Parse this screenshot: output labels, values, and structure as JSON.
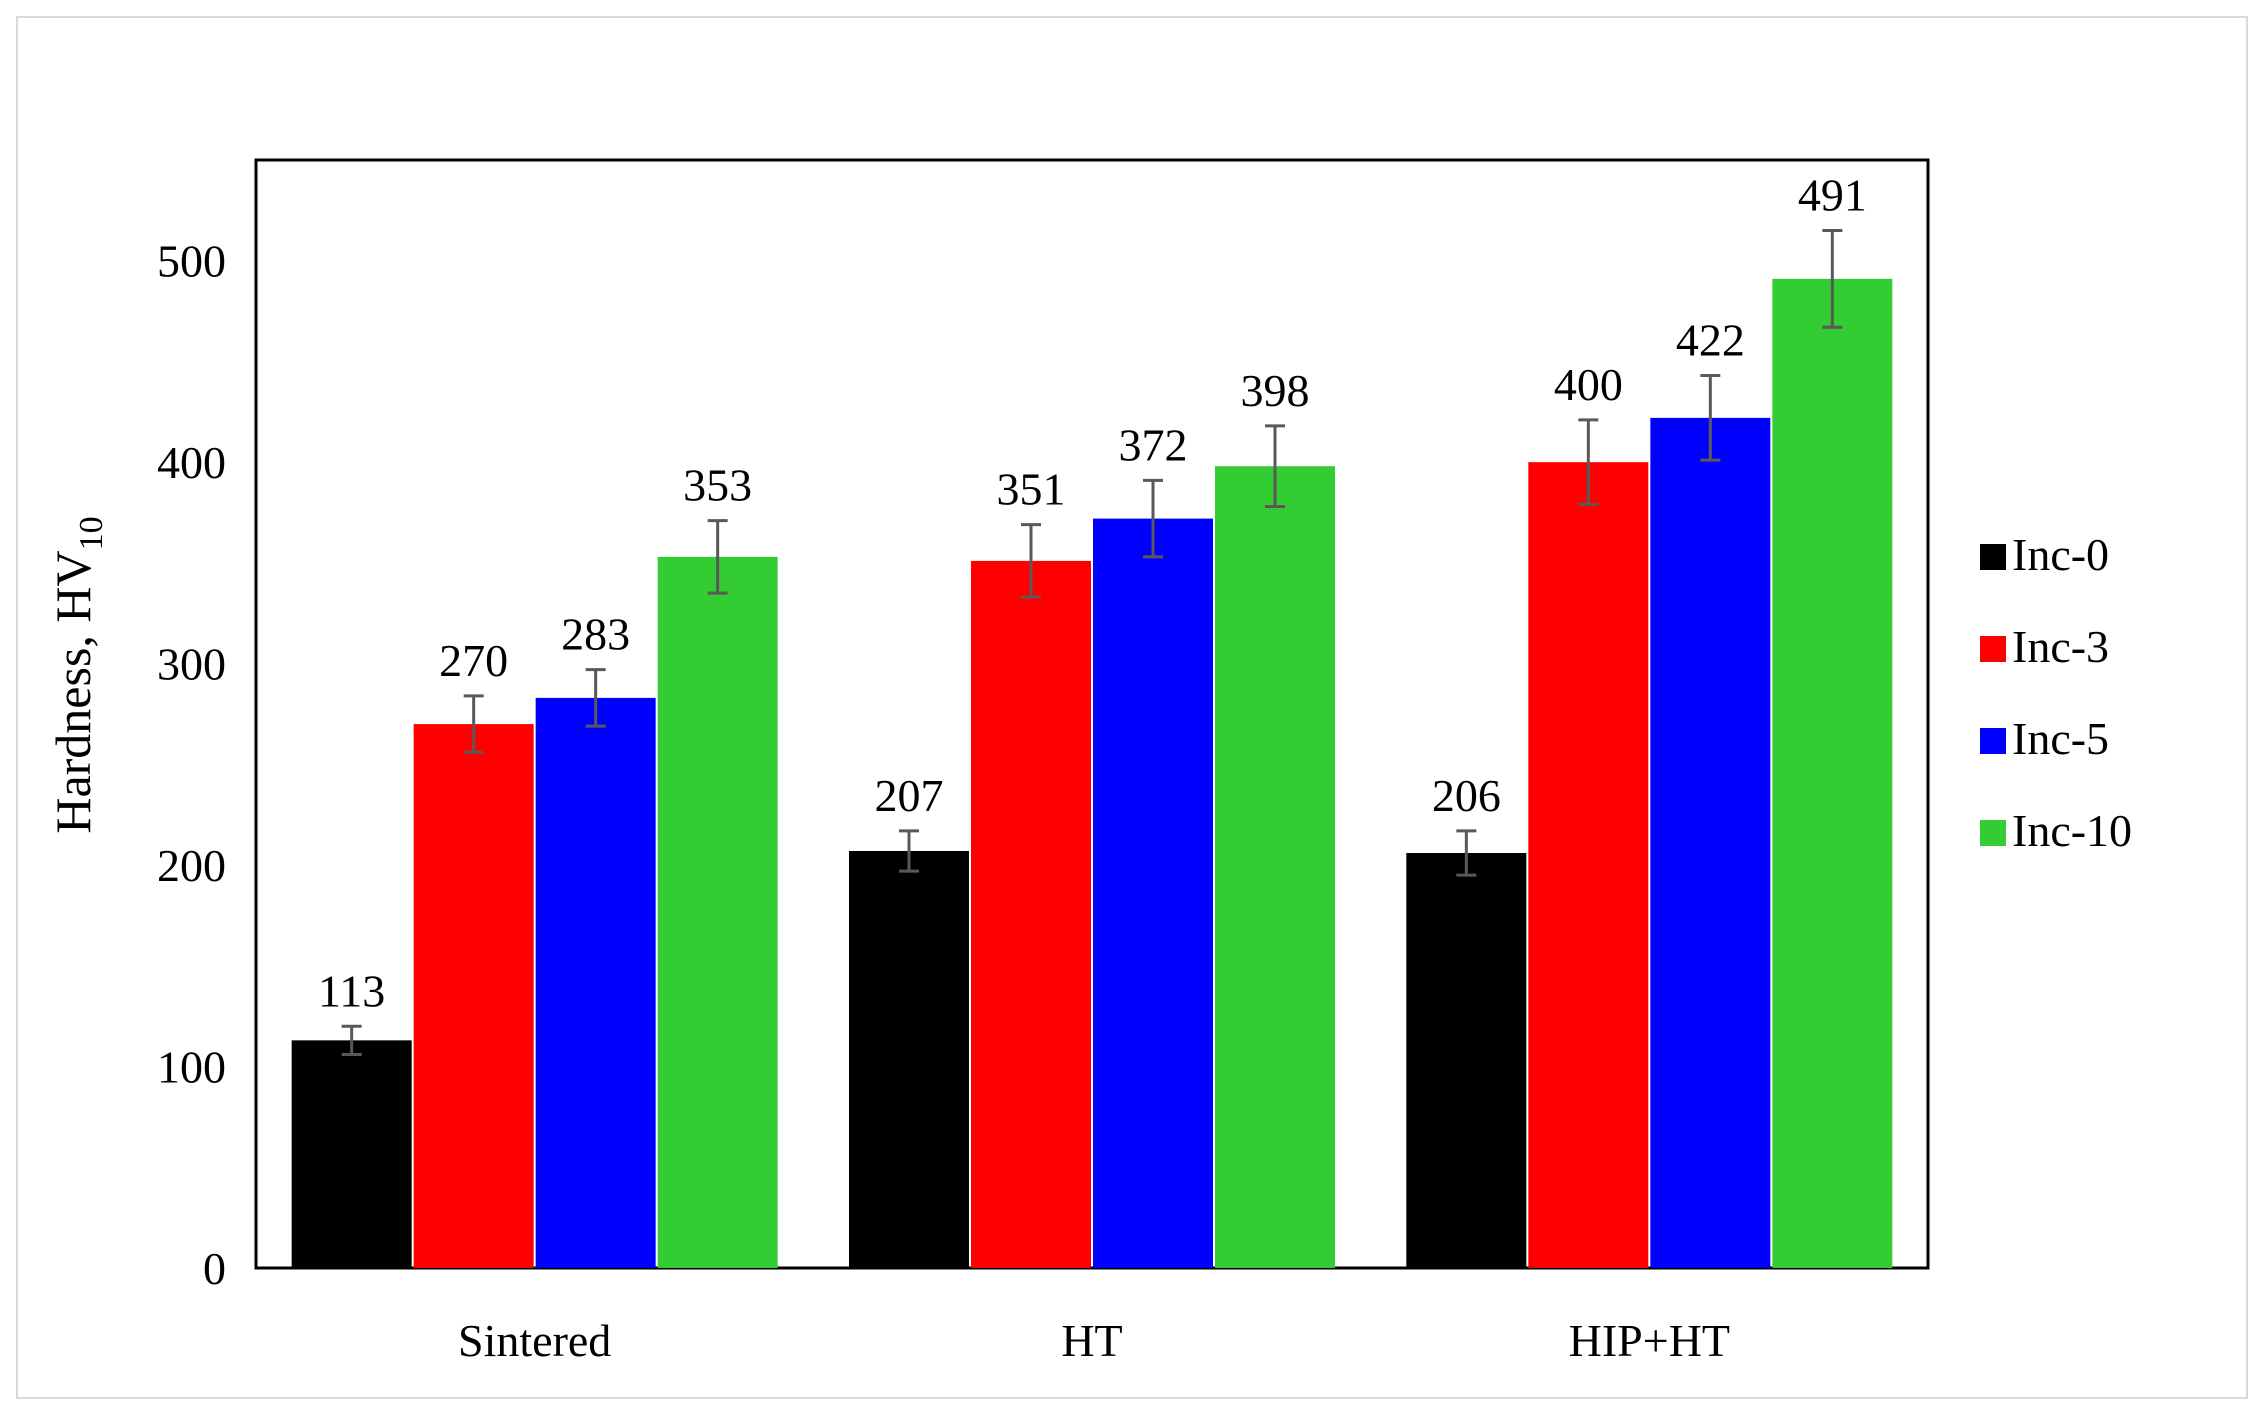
{
  "chart_data": {
    "type": "bar",
    "categories": [
      "Sintered",
      "HT",
      "HIP+HT"
    ],
    "series": [
      {
        "name": "Inc-0",
        "color": "#000000",
        "values": [
          113,
          207,
          206
        ],
        "errors": [
          7,
          10,
          11
        ]
      },
      {
        "name": "Inc-3",
        "color": "#ff0000",
        "values": [
          270,
          351,
          400
        ],
        "errors": [
          14,
          18,
          21
        ]
      },
      {
        "name": "Inc-5",
        "color": "#0000ff",
        "values": [
          283,
          372,
          422
        ],
        "errors": [
          14,
          19,
          21
        ]
      },
      {
        "name": "Inc-10",
        "color": "#33cc33",
        "values": [
          353,
          398,
          491
        ],
        "errors": [
          18,
          20,
          24
        ]
      }
    ],
    "data_labels": [
      [
        "113",
        "207",
        "206"
      ],
      [
        "270",
        "351",
        "400"
      ],
      [
        "283",
        "372",
        "422"
      ],
      [
        "353",
        "398",
        "491"
      ]
    ],
    "ylabel_main": "Hardness, HV",
    "ylabel_sub": "10",
    "xlabel": "",
    "ylim": [
      0,
      550
    ],
    "yticks": [
      "0",
      "100",
      "200",
      "300",
      "400",
      "500"
    ],
    "grid": false,
    "legend_position": "right"
  }
}
